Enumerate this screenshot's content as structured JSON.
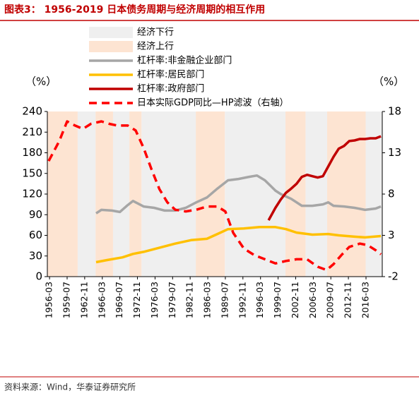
{
  "chart_data": {
    "type": "line",
    "title": "图表3：  1956-2019 日本债务周期与经济周期的相互作用",
    "source": "资料来源：Wind，华泰证券研究所",
    "y_label": "（%）",
    "y2_label": "（%）",
    "xlim": [
      1955.75,
      2019.25
    ],
    "xticks": [
      {
        "value": 1956.17,
        "label": "1956-03"
      },
      {
        "value": 1959.5,
        "label": "1959-07"
      },
      {
        "value": 1962.83,
        "label": "1962-11"
      },
      {
        "value": 1966.17,
        "label": "1966-03"
      },
      {
        "value": 1969.5,
        "label": "1969-07"
      },
      {
        "value": 1972.83,
        "label": "1972-11"
      },
      {
        "value": 1976.17,
        "label": "1976-03"
      },
      {
        "value": 1979.5,
        "label": "1979-07"
      },
      {
        "value": 1982.83,
        "label": "1982-11"
      },
      {
        "value": 1986.17,
        "label": "1986-03"
      },
      {
        "value": 1989.5,
        "label": "1989-07"
      },
      {
        "value": 1992.83,
        "label": "1992-11"
      },
      {
        "value": 1996.17,
        "label": "1996-03"
      },
      {
        "value": 1999.5,
        "label": "1999-07"
      },
      {
        "value": 2002.83,
        "label": "2002-11"
      },
      {
        "value": 2006.17,
        "label": "2006-03"
      },
      {
        "value": 2009.5,
        "label": "2009-07"
      },
      {
        "value": 2012.83,
        "label": "2012-11"
      },
      {
        "value": 2016.17,
        "label": "2016-03"
      }
    ],
    "ylim": [
      0,
      240
    ],
    "yticks": [
      0,
      30,
      60,
      90,
      120,
      150,
      180,
      210,
      240
    ],
    "y2lim": [
      -2,
      18
    ],
    "y2ticks": [
      -2,
      3,
      8,
      13,
      18
    ],
    "bands": [
      {
        "name": "经济下行",
        "color": "#efefef",
        "ranges": [
          [
            1961.5,
            1964.9
          ],
          [
            1968.2,
            1971.3
          ],
          [
            1973.6,
            1983.9
          ],
          [
            1989.4,
            2000.9
          ],
          [
            2004.7,
            2008.8
          ],
          [
            2016.1,
            2019.25
          ]
        ]
      },
      {
        "name": "经济上行",
        "color": "#fde4d2",
        "ranges": [
          [
            1955.75,
            1961.5
          ],
          [
            1964.9,
            1968.2
          ],
          [
            1971.3,
            1973.6
          ],
          [
            1983.9,
            1989.4
          ],
          [
            2000.9,
            2004.7
          ],
          [
            2008.8,
            2016.1
          ]
        ]
      }
    ],
    "series": [
      {
        "name": "杠杆率:非金融企业部门",
        "color": "#a6a6a6",
        "x": [
          1965,
          1966,
          1968,
          1969.5,
          1971,
          1972,
          1974,
          1976,
          1978,
          1980,
          1982,
          1984,
          1986,
          1988,
          1990,
          1992,
          1994,
          1995.5,
          1997,
          1999,
          2000,
          2002,
          2004,
          2006,
          2008,
          2009,
          2010,
          2012,
          2014,
          2016,
          2018,
          2019
        ],
        "values": [
          92,
          97,
          96,
          94,
          104,
          110,
          102,
          100,
          96,
          96,
          100,
          108,
          115,
          128,
          140,
          142,
          145,
          147,
          140,
          125,
          120,
          113,
          103,
          103,
          105,
          108,
          103,
          102,
          100,
          97,
          99,
          102
        ]
      },
      {
        "name": "杠杆率:居民部门",
        "color": "#ffc000",
        "x": [
          1965,
          1967,
          1970,
          1972,
          1974,
          1977,
          1980,
          1983,
          1986,
          1988,
          1990,
          1993,
          1996,
          1999,
          2001,
          2003,
          2006,
          2009,
          2011,
          2014,
          2016,
          2019
        ],
        "values": [
          21,
          24,
          28,
          33,
          36,
          42,
          48,
          53,
          55,
          62,
          69,
          70,
          72,
          72,
          69,
          64,
          61,
          62,
          60,
          58,
          57,
          59
        ]
      },
      {
        "name": "杠杆率:政府部门",
        "color": "#c00000",
        "x": [
          1997.7,
          1999,
          2000,
          2001,
          2002,
          2003,
          2004,
          2005,
          2006,
          2007,
          2008,
          2009,
          2010,
          2011,
          2012,
          2013,
          2014,
          2015,
          2016,
          2017,
          2018,
          2019
        ],
        "values": [
          82,
          100,
          112,
          122,
          128,
          135,
          145,
          148,
          146,
          144,
          146,
          160,
          174,
          186,
          190,
          197,
          198,
          200,
          200,
          201,
          201,
          204
        ]
      },
      {
        "name": "日本实际GDP同比—HP滤波（右轴）",
        "color": "#ff0000",
        "axis": "y2",
        "dashed": true,
        "x": [
          1956,
          1958,
          1959.5,
          1961,
          1962.5,
          1964,
          1966,
          1967.5,
          1969,
          1971,
          1972.5,
          1974,
          1975.5,
          1977,
          1978.5,
          1980,
          1982,
          1984,
          1986,
          1988,
          1989.5,
          1991,
          1993,
          1995,
          1997,
          1999,
          2001,
          2003,
          2005,
          2007,
          2008.7,
          2010,
          2011.5,
          2013,
          2015,
          2016.5,
          2018,
          2019
        ],
        "values": [
          12.0,
          14.4,
          16.8,
          16.3,
          15.9,
          16.5,
          16.8,
          16.5,
          16.3,
          16.3,
          15.7,
          13.6,
          11.0,
          8.6,
          7.0,
          6.1,
          5.9,
          6.1,
          6.5,
          6.5,
          5.9,
          3.3,
          1.4,
          0.6,
          0.1,
          -0.4,
          -0.1,
          0.1,
          0.1,
          -0.8,
          -1.2,
          -0.5,
          0.6,
          1.6,
          2.0,
          1.8,
          1.2,
          0.7
        ]
      }
    ]
  }
}
